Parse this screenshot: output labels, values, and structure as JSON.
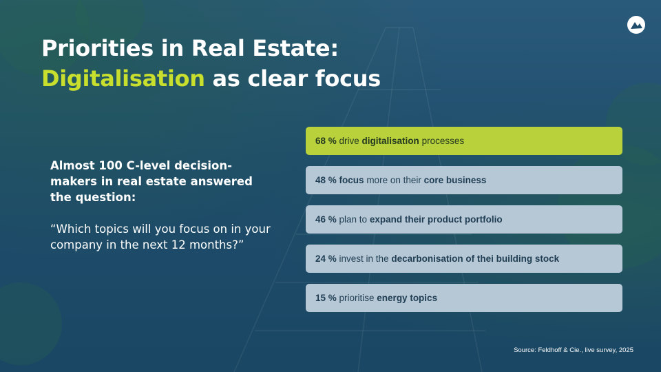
{
  "slide": {
    "title_line1": "Priorities in Real Estate:",
    "title_highlight": "Digitalisation",
    "title_rest": " as clear focus",
    "intro_lead": "Almost 100 C-level decision-makers in real estate answered the question:",
    "intro_quote": "“Which topics will you focus on in your company in the next 12 months?”",
    "source": "Source: Feldhoff & Cie., live survey, 2025"
  },
  "items": [
    {
      "percent": "68 %",
      "parts": [
        " drive ",
        "digitalisation",
        " processes",
        ""
      ],
      "active": true
    },
    {
      "percent": "48 %",
      "parts": [
        " ",
        "focus",
        " more on their  ",
        "core business"
      ],
      "active": false
    },
    {
      "percent": "46 %",
      "parts": [
        " plan to ",
        "expand their product portfolio",
        "",
        ""
      ],
      "active": false
    },
    {
      "percent": "24 %",
      "parts": [
        " invest in the ",
        "decarbonisation of thei building stock",
        "",
        ""
      ],
      "active": false
    },
    {
      "percent": "15 %",
      "parts": [
        " prioritise ",
        "energy topics",
        "",
        ""
      ],
      "active": false
    }
  ],
  "colors": {
    "accent": "#c9df2e",
    "active_bar": "#b9d13a",
    "inactive_bar": "#b6c8d6",
    "background": "#1d4a66"
  }
}
